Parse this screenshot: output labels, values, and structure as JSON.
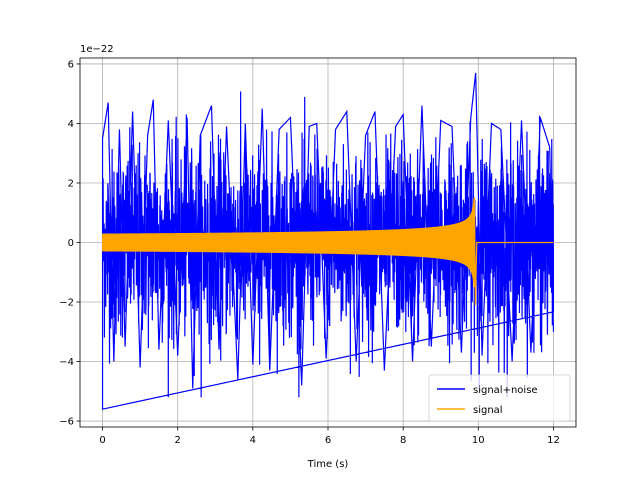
{
  "chart_data": {
    "type": "line",
    "xlabel": "Time (s)",
    "ylabel": "",
    "y_offset_label": "1e−22",
    "xlim": [
      -0.6,
      12.6
    ],
    "ylim": [
      -6.2,
      6.2
    ],
    "xticks": [
      0,
      2,
      4,
      6,
      8,
      10,
      12
    ],
    "xtick_labels": [
      "0",
      "2",
      "4",
      "6",
      "8",
      "10",
      "12"
    ],
    "yticks": [
      -6,
      -4,
      -2,
      0,
      2,
      4,
      6
    ],
    "ytick_labels": [
      "−6",
      "−4",
      "−2",
      "0",
      "2",
      "4",
      "6"
    ],
    "grid": true,
    "legend_position": "lower-right",
    "series": [
      {
        "name": "signal+noise",
        "color": "#0000ff",
        "x_range": [
          0,
          12
        ],
        "envelope_description_values": {
          "typical_peak": 3.0,
          "max_peak": 5.7,
          "min_peak": -5.6
        },
        "samples": [
          [
            0.0,
            -5.6
          ],
          [
            0.0,
            3.5
          ],
          [
            0.15,
            4.7
          ],
          [
            0.3,
            -4.0
          ],
          [
            0.45,
            3.8
          ],
          [
            0.6,
            -3.5
          ],
          [
            0.8,
            4.4
          ],
          [
            1.0,
            -4.2
          ],
          [
            1.2,
            3.6
          ],
          [
            1.35,
            4.8
          ],
          [
            1.5,
            -3.6
          ],
          [
            1.75,
            4.1
          ],
          [
            2.0,
            -3.8
          ],
          [
            2.25,
            4.2
          ],
          [
            2.4,
            -4.9
          ],
          [
            2.6,
            3.6
          ],
          [
            2.9,
            4.6
          ],
          [
            3.1,
            -3.6
          ],
          [
            3.3,
            3.9
          ],
          [
            3.6,
            -4.6
          ],
          [
            3.8,
            4.0
          ],
          [
            4.0,
            -4.1
          ],
          [
            4.25,
            4.5
          ],
          [
            4.45,
            -4.3
          ],
          [
            4.7,
            3.8
          ],
          [
            5.0,
            4.2
          ],
          [
            5.3,
            -4.8
          ],
          [
            5.5,
            3.9
          ],
          [
            5.7,
            4.0
          ],
          [
            5.95,
            -3.9
          ],
          [
            6.2,
            3.8
          ],
          [
            6.5,
            4.4
          ],
          [
            6.75,
            -4.0
          ],
          [
            7.0,
            3.6
          ],
          [
            7.25,
            4.4
          ],
          [
            7.5,
            -4.3
          ],
          [
            7.8,
            3.9
          ],
          [
            8.0,
            4.3
          ],
          [
            8.25,
            -4.0
          ],
          [
            8.5,
            4.6
          ],
          [
            8.75,
            -3.5
          ],
          [
            9.0,
            4.1
          ],
          [
            9.3,
            3.9
          ],
          [
            9.55,
            -3.7
          ],
          [
            9.8,
            4.2
          ],
          [
            9.93,
            5.7
          ],
          [
            10.1,
            -3.8
          ],
          [
            10.35,
            4.0
          ],
          [
            10.6,
            3.8
          ],
          [
            10.9,
            -4.0
          ],
          [
            11.15,
            4.1
          ],
          [
            11.4,
            -3.7
          ],
          [
            11.65,
            4.2
          ],
          [
            11.9,
            3.2
          ],
          [
            12.0,
            -3.0
          ]
        ]
      },
      {
        "name": "signal",
        "color": "#ffa500",
        "chirp": {
          "start_time": 0.0,
          "merger_time": 9.9,
          "end_time": 12.0,
          "start_amplitude": 0.3,
          "peak_amplitude": 1.5,
          "trough_at_merger": -2.1,
          "post_merger_value": 0.0
        }
      }
    ]
  }
}
